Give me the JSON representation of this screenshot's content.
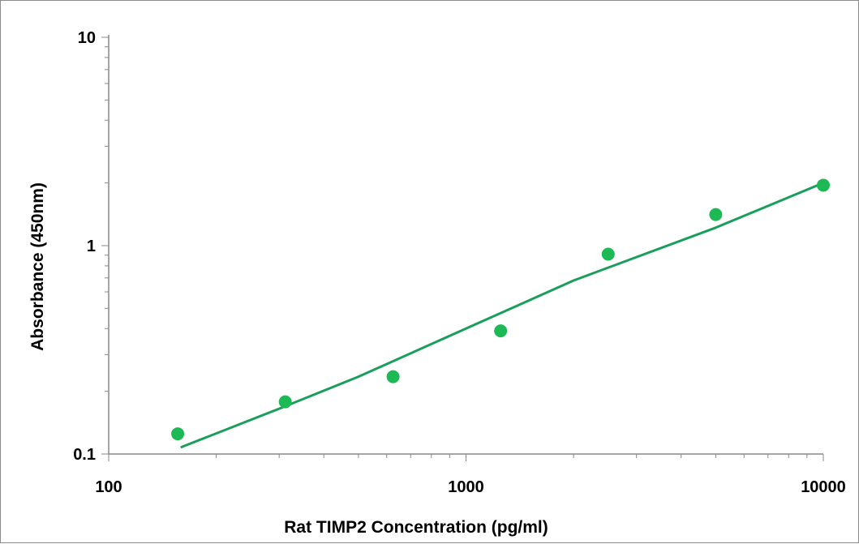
{
  "chart_data": {
    "type": "scatter",
    "title": "",
    "xlabel": "Rat TIMP2  Concentration (pg/ml)",
    "ylabel": "Absorbance (450nm)",
    "x_scale": "log",
    "y_scale": "log",
    "xlim": [
      100,
      10000
    ],
    "ylim": [
      0.1,
      10
    ],
    "x_ticks": [
      100,
      1000,
      10000
    ],
    "x_tick_labels": [
      "100",
      "1000",
      "10000"
    ],
    "y_ticks": [
      0.1,
      1,
      10
    ],
    "y_tick_labels": [
      "0.1",
      "1",
      "10"
    ],
    "grid": false,
    "legend": "none",
    "series": [
      {
        "kind": "points",
        "color": "#1db954",
        "points": [
          {
            "x": 156,
            "y": 0.125
          },
          {
            "x": 312,
            "y": 0.178
          },
          {
            "x": 625,
            "y": 0.235
          },
          {
            "x": 1250,
            "y": 0.39
          },
          {
            "x": 2500,
            "y": 0.91
          },
          {
            "x": 5000,
            "y": 1.41
          },
          {
            "x": 10000,
            "y": 1.95
          }
        ]
      },
      {
        "kind": "fit-line",
        "color": "#1a9e5c",
        "points": [
          {
            "x": 160,
            "y": 0.108
          },
          {
            "x": 300,
            "y": 0.165
          },
          {
            "x": 500,
            "y": 0.235
          },
          {
            "x": 1000,
            "y": 0.4
          },
          {
            "x": 2000,
            "y": 0.68
          },
          {
            "x": 5000,
            "y": 1.22
          },
          {
            "x": 10000,
            "y": 2.0
          }
        ]
      }
    ]
  }
}
